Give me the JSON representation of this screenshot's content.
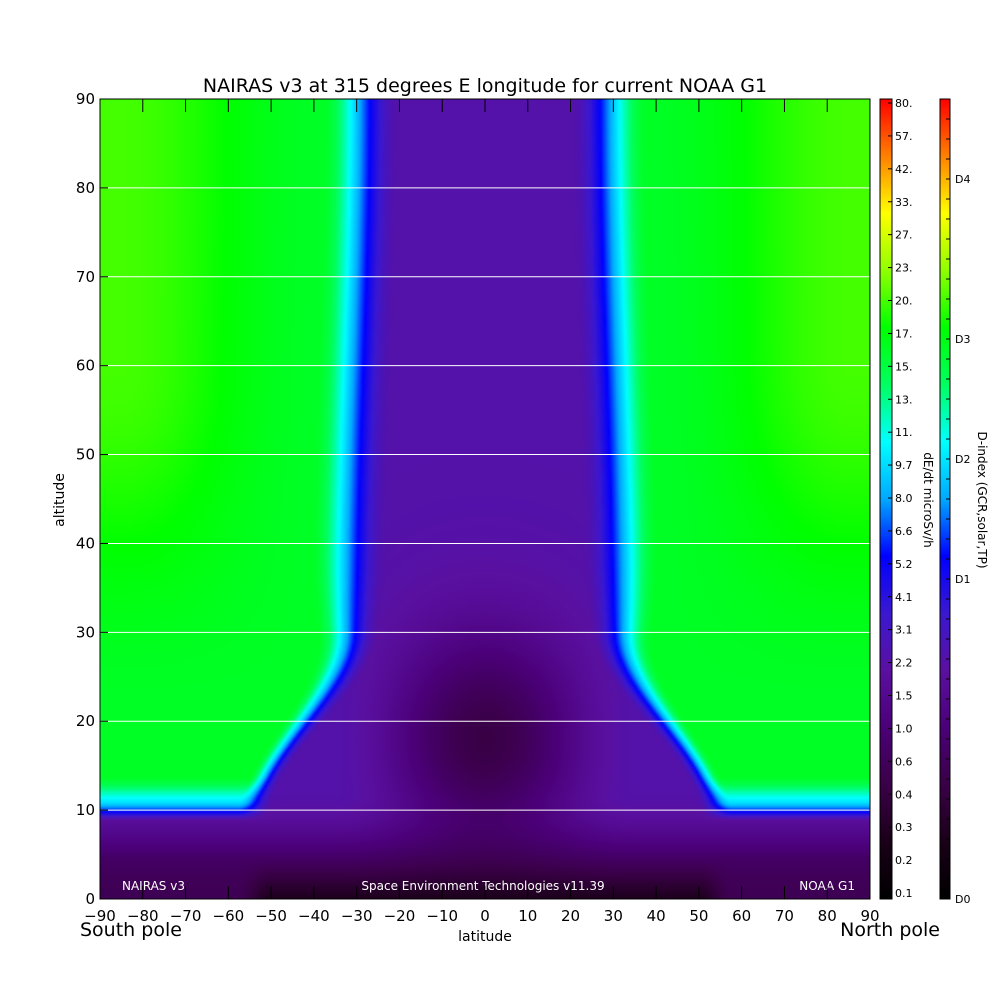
{
  "chart_data": {
    "type": "heatmap",
    "title": "NAIRAS v3 at 315 degrees E longitude for current NOAA G1",
    "xlabel": "latitude",
    "ylabel": "altitude",
    "xlim": [
      -90,
      90
    ],
    "ylim": [
      0,
      90
    ],
    "x_ticks": [
      "-90",
      "-80",
      "-70",
      "-60",
      "-50",
      "-40",
      "-30",
      "-20",
      "-10",
      "0",
      "10",
      "20",
      "30",
      "40",
      "50",
      "60",
      "70",
      "80",
      "90"
    ],
    "y_ticks": [
      "0",
      "10",
      "20",
      "30",
      "40",
      "50",
      "60",
      "70",
      "80",
      "90"
    ],
    "grid": "horizontal lines every 10 altitude units",
    "south_label": "South pole",
    "north_label": "North pole",
    "footer_left": "NAIRAS v3",
    "footer_center": "Space Environment Technologies v11.39",
    "footer_right": "NOAA G1",
    "colorbar_dose": {
      "label": "dE/dt microSv/h",
      "ticks": [
        "0.1",
        "0.2",
        "0.3",
        "0.4",
        "0.6",
        "1.0",
        "1.5",
        "2.2",
        "3.1",
        "4.1",
        "5.2",
        "6.6",
        "8.0",
        "9.7",
        "11.",
        "13.",
        "15.",
        "17.",
        "20.",
        "23.",
        "27.",
        "33.",
        "42.",
        "57.",
        "80."
      ]
    },
    "colorbar_dindex": {
      "label": "D-index (GCR,solar,TP)",
      "ticks": [
        "D0",
        "D1",
        "D2",
        "D3",
        "D4"
      ],
      "tick_fractions": [
        0.0,
        0.4,
        0.55,
        0.7,
        0.9
      ]
    },
    "colormap": [
      "#000000",
      "#1a0018",
      "#3a0048",
      "#4b0078",
      "#5a10a0",
      "#3a18d0",
      "#0000ff",
      "#00a8ff",
      "#00ffff",
      "#00ff60",
      "#00ff00",
      "#90ff00",
      "#ffff00",
      "#ff8000",
      "#ff0000"
    ],
    "data_description": "dose rate rises with altitude and toward the poles; low near the equator and near ground; steep latitude gradient between 35-55 degrees"
  }
}
